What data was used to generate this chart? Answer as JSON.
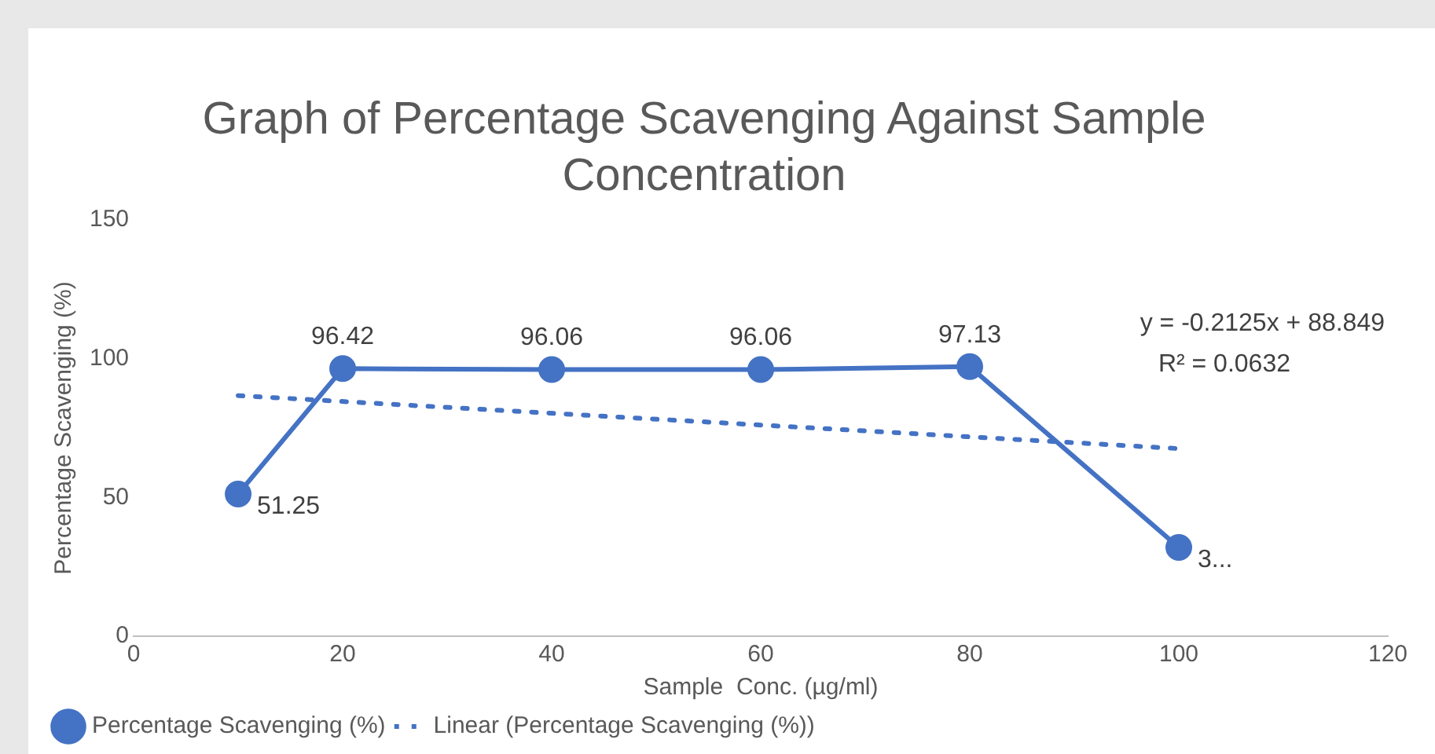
{
  "chart_data": {
    "type": "line",
    "title": "Graph of Percentage Scavenging Against Sample Concentration",
    "xlabel": "Sample  Conc. (µg/ml)",
    "ylabel": "Percentage Scavenging (%)",
    "x": [
      10,
      20,
      40,
      60,
      80,
      100
    ],
    "series": [
      {
        "name": "Percentage Scavenging (%)",
        "color": "#4472c4",
        "values": [
          51.25,
          96.42,
          96.06,
          96.06,
          97.13,
          32
        ],
        "value_labels": [
          "51.25",
          "96.42",
          "96.06",
          "96.06",
          "97.13",
          "3..."
        ],
        "marker": "circle",
        "line_style": "solid"
      },
      {
        "name": "Linear (Percentage Scavenging (%))",
        "type": "line",
        "color": "#4472c4",
        "x": [
          10,
          100
        ],
        "values": [
          86.7,
          67.6
        ],
        "marker": "none",
        "line_style": "dotted"
      }
    ],
    "annotations": [
      "y = -0.2125x + 88.849",
      "R² = 0.0632"
    ],
    "xlim": [
      0,
      120
    ],
    "xticks": [
      0,
      20,
      40,
      60,
      80,
      100,
      120
    ],
    "ylim": [
      0,
      150
    ],
    "yticks": [
      0,
      50,
      100,
      150
    ],
    "grid": false,
    "legend": "bottom left"
  }
}
